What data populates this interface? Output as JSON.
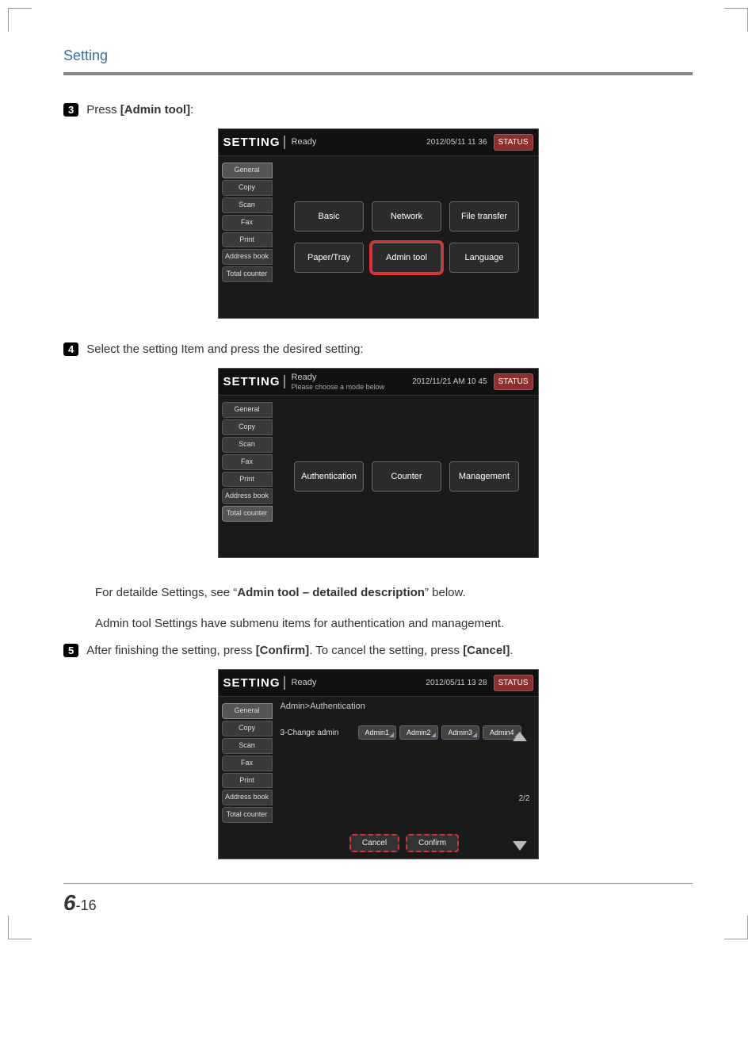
{
  "page": {
    "section_title": "Setting",
    "footer_chapter": "6",
    "footer_page": "-16"
  },
  "colors": {
    "title": "#3a6ea5",
    "highlight": "#e03030",
    "status_bg": "#8b2f2f",
    "panel_bg": "#1a1a1a",
    "btn_bg": "#2b2b2b"
  },
  "steps": {
    "s3": {
      "num": "3",
      "prefix": "Press ",
      "bold": "[Admin tool]",
      "suffix": ":"
    },
    "s4": {
      "num": "4",
      "text": "Select the setting Item and press the desired setting:"
    },
    "s5": {
      "num": "5",
      "prefix": "After finishing the setting, press ",
      "bold1": "[Confirm]",
      "mid": ". To cancel the setting, press ",
      "bold2": "[Cancel]",
      "suffix": "."
    }
  },
  "note": {
    "line1_a": "For detailde Settings, see ",
    "line1_q1": "“",
    "line1_bold": "Admin tool – detailed description",
    "line1_q2": "”",
    "line1_b": " below.",
    "line2": "Admin tool Settings have submenu items for authentication and management."
  },
  "shot_common": {
    "setting": "SETTING",
    "ready": "Ready",
    "status": "STATUS",
    "tabs": [
      "General",
      "Copy",
      "Scan",
      "Fax",
      "Print",
      "Address book",
      "Total counter"
    ]
  },
  "shot1": {
    "datetime": "2012/05/11 11 36",
    "active_tab": "General",
    "row1": [
      "Basic",
      "Network",
      "File transfer"
    ],
    "row2": [
      "Paper/Tray",
      "Admin tool",
      "Language"
    ],
    "highlight": "Admin tool"
  },
  "shot2": {
    "datetime": "2012/11/21 AM 10 45",
    "subline": "Please choose a mode below",
    "active_tab": "Total counter",
    "row1": [
      "Authentication",
      "Counter",
      "Management"
    ]
  },
  "shot3": {
    "datetime": "2012/05/11 13 28",
    "breadcrumb": "Admin>Authentication",
    "active_tab": "General",
    "item_label": "3-Change admin",
    "options": [
      "Admin1",
      "Admin2",
      "Admin3",
      "Admin4"
    ],
    "page_indicator": "2/2",
    "cancel": "Cancel",
    "confirm": "Confirm"
  }
}
